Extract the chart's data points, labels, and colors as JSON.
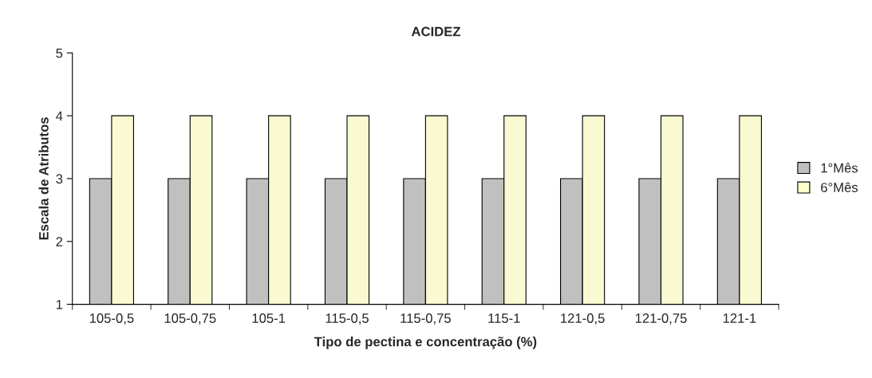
{
  "chart_data": {
    "type": "bar",
    "title": "ACIDEZ",
    "xlabel": "Tipo de pectina e concentração (%)",
    "ylabel": "Escala de Atributos",
    "categories": [
      "105-0,5",
      "105-0,75",
      "105-1",
      "115-0,5",
      "115-0,75",
      "115-1",
      "121-0,5",
      "121-0,75",
      "121-1"
    ],
    "series": [
      {
        "name": "1°Mês",
        "color": "#c0c0c0",
        "values": [
          3,
          3,
          3,
          3,
          3,
          3,
          3,
          3,
          3
        ]
      },
      {
        "name": "6°Mês",
        "color": "#ffffcc",
        "values": [
          4,
          4,
          4,
          4,
          4,
          4,
          4,
          4,
          4
        ]
      }
    ],
    "ylim": [
      1,
      5
    ],
    "yticks": [
      1,
      2,
      3,
      4,
      5
    ],
    "grid": false,
    "legend": "right"
  }
}
